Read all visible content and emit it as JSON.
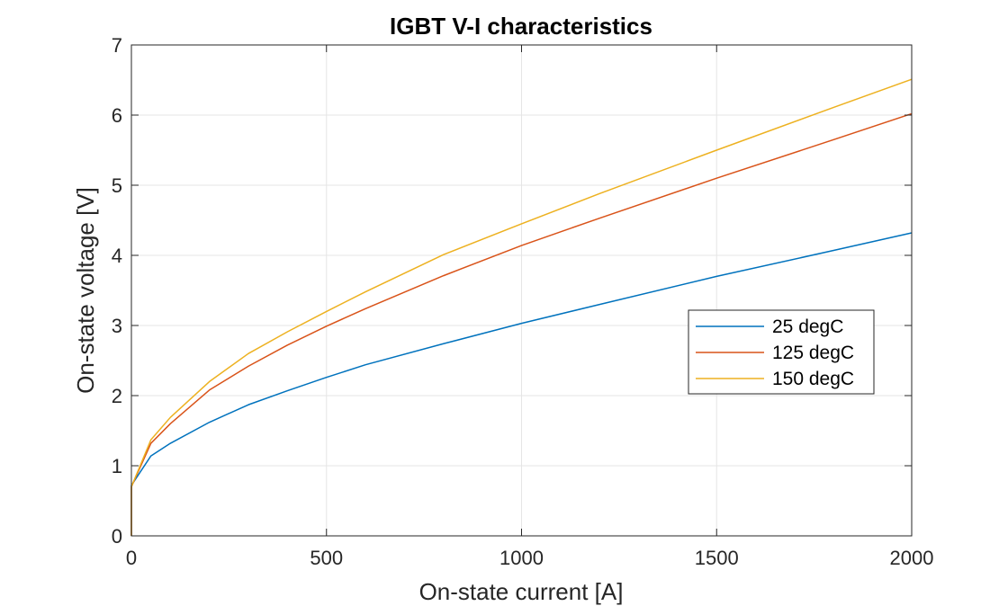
{
  "chart_data": {
    "type": "line",
    "title": "IGBT V-I characteristics",
    "xlabel": "On-state current [A]",
    "ylabel": "On-state voltage [V]",
    "xlim": [
      0,
      2000
    ],
    "ylim": [
      0,
      7
    ],
    "xticks": [
      0,
      500,
      1000,
      1500,
      2000
    ],
    "yticks": [
      0,
      1,
      2,
      3,
      4,
      5,
      6,
      7
    ],
    "grid": true,
    "legend_position": "right-center",
    "series": [
      {
        "name": "25 degC",
        "color": "#0072BD",
        "x": [
          0,
          0,
          50,
          100,
          200,
          300,
          400,
          500,
          600,
          800,
          1000,
          1200,
          1500,
          1800,
          2000
        ],
        "y": [
          0,
          0.72,
          1.14,
          1.32,
          1.62,
          1.87,
          2.07,
          2.26,
          2.44,
          2.74,
          3.03,
          3.3,
          3.7,
          4.07,
          4.32
        ]
      },
      {
        "name": "125 degC",
        "color": "#D95319",
        "x": [
          0,
          0,
          50,
          100,
          200,
          300,
          400,
          500,
          600,
          800,
          1000,
          1200,
          1500,
          1800,
          2000
        ],
        "y": [
          0,
          0.7,
          1.32,
          1.6,
          2.08,
          2.42,
          2.72,
          2.99,
          3.24,
          3.71,
          4.14,
          4.53,
          5.1,
          5.65,
          6.02
        ]
      },
      {
        "name": "150 degC",
        "color": "#EDB120",
        "x": [
          0,
          0,
          50,
          100,
          200,
          300,
          400,
          500,
          600,
          800,
          1000,
          1200,
          1500,
          1800,
          2000
        ],
        "y": [
          0,
          0.7,
          1.37,
          1.69,
          2.2,
          2.6,
          2.91,
          3.2,
          3.48,
          4.01,
          4.45,
          4.88,
          5.5,
          6.11,
          6.51
        ]
      }
    ]
  }
}
